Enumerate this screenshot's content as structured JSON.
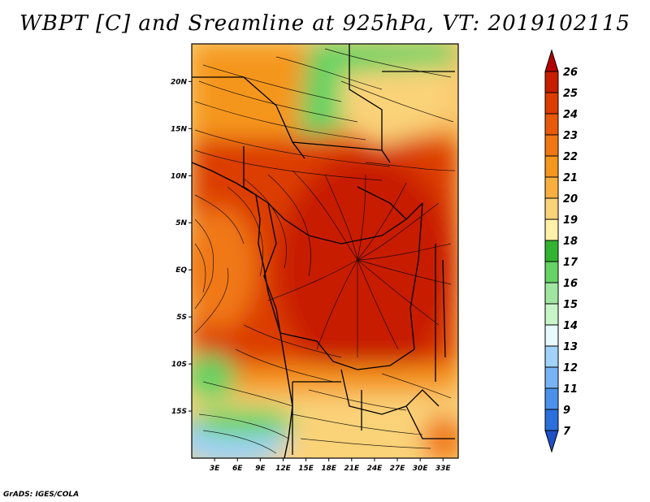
{
  "title": "WBPT [C] and Sreamline at 925hPa, VT: 2019102115",
  "credit": "GrADS: IGES/COLA",
  "map": {
    "variable": "Wet-bulb potential temperature",
    "units": "C",
    "level": "925hPa",
    "valid_time": "2019102115",
    "lon_range": [
      0,
      35
    ],
    "lat_range": [
      -20,
      24
    ],
    "lat_ticks": [
      {
        "value": 20,
        "label": "20N"
      },
      {
        "value": 15,
        "label": "15N"
      },
      {
        "value": 10,
        "label": "10N"
      },
      {
        "value": 5,
        "label": "5N"
      },
      {
        "value": 0,
        "label": "EQ"
      },
      {
        "value": -5,
        "label": "5S"
      },
      {
        "value": -10,
        "label": "10S"
      },
      {
        "value": -15,
        "label": "15S"
      }
    ],
    "lon_ticks": [
      {
        "value": 3,
        "label": "3E"
      },
      {
        "value": 6,
        "label": "6E"
      },
      {
        "value": 9,
        "label": "9E"
      },
      {
        "value": 12,
        "label": "12E"
      },
      {
        "value": 15,
        "label": "15E"
      },
      {
        "value": 18,
        "label": "18E"
      },
      {
        "value": 21,
        "label": "21E"
      },
      {
        "value": 24,
        "label": "24E"
      },
      {
        "value": 27,
        "label": "27E"
      },
      {
        "value": 30,
        "label": "30E"
      },
      {
        "value": 33,
        "label": "33E"
      }
    ]
  },
  "colorbar": {
    "levels": [
      "26",
      "25",
      "24",
      "23",
      "22",
      "21",
      "20",
      "19",
      "18",
      "17",
      "16",
      "15",
      "14",
      "13",
      "12",
      "11",
      "9",
      "7"
    ],
    "colors": [
      "#b40000",
      "#c81e00",
      "#dc3c00",
      "#e85a0a",
      "#f07814",
      "#f5961e",
      "#f7b040",
      "#fad278",
      "#fff0aa",
      "#32b432",
      "#64d264",
      "#a0e6a0",
      "#c8f5c8",
      "#e6faff",
      "#a0d2fa",
      "#78b4f5",
      "#4b91eb",
      "#2b6fdc",
      "#1e50c8"
    ]
  }
}
